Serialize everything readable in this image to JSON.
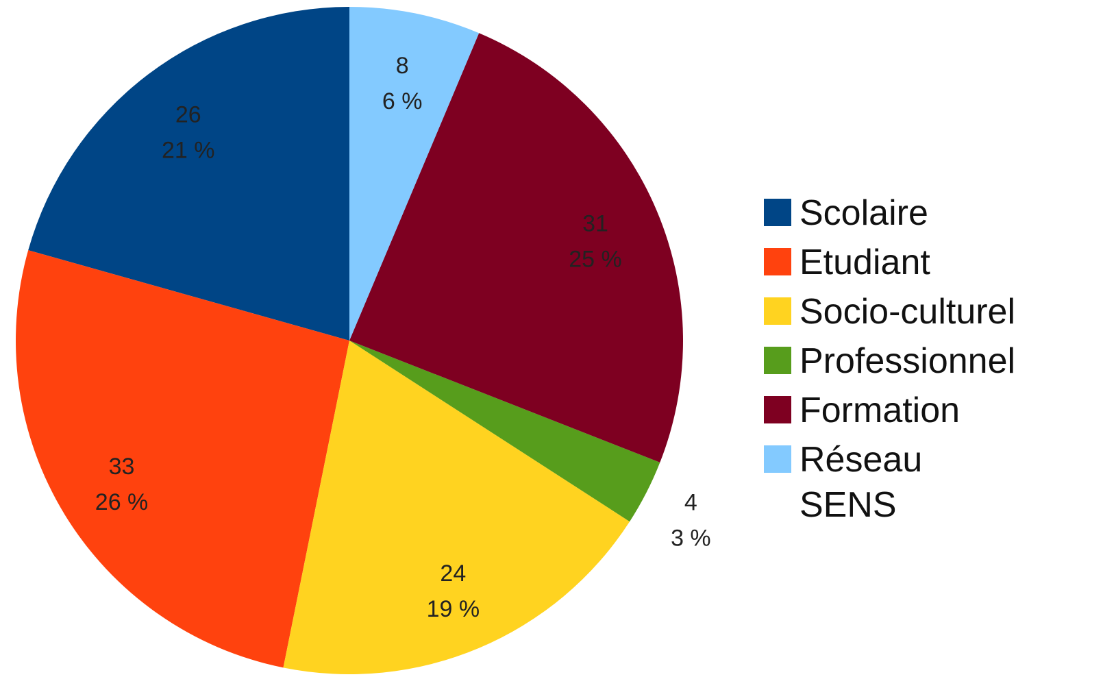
{
  "chart_data": {
    "type": "pie",
    "categories": [
      "Scolaire",
      "Etudiant",
      "Socio-culturel",
      "Professionnel",
      "Formation",
      "Réseau\nSENS"
    ],
    "values": [
      26,
      33,
      24,
      4,
      31,
      8
    ],
    "percent_labels": [
      "21 %",
      "26 %",
      "19 %",
      "3 %",
      "25 %",
      "6 %"
    ],
    "colors": [
      "#004586",
      "#ff420e",
      "#ffd320",
      "#579d1c",
      "#7e0021",
      "#83caff"
    ],
    "legend": "right"
  }
}
